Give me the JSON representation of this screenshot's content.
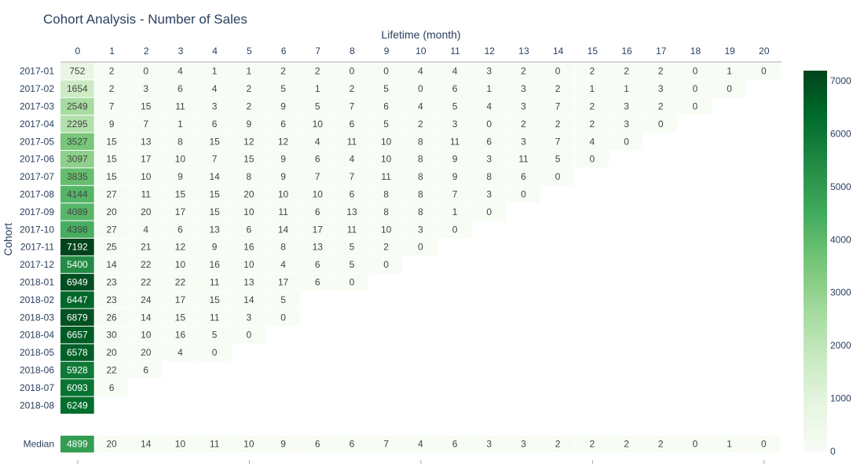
{
  "chart_data": {
    "type": "heatmap",
    "title": "Cohort Analysis - Number of Sales",
    "xlabel": "Lifetime (month)",
    "ylabel": "Cohort",
    "x": [
      "0",
      "1",
      "2",
      "3",
      "4",
      "5",
      "6",
      "7",
      "8",
      "9",
      "10",
      "11",
      "12",
      "13",
      "14",
      "15",
      "16",
      "17",
      "18",
      "19",
      "20"
    ],
    "rows": [
      {
        "cohort": "2017-01",
        "values": [
          752,
          2,
          0,
          4,
          1,
          1,
          2,
          2,
          0,
          0,
          4,
          4,
          3,
          2,
          0,
          2,
          2,
          2,
          0,
          1,
          0
        ]
      },
      {
        "cohort": "2017-02",
        "values": [
          1654,
          2,
          3,
          6,
          4,
          2,
          5,
          1,
          2,
          5,
          0,
          6,
          1,
          3,
          2,
          1,
          1,
          3,
          0,
          0
        ]
      },
      {
        "cohort": "2017-03",
        "values": [
          2549,
          7,
          15,
          11,
          3,
          2,
          9,
          5,
          7,
          6,
          4,
          5,
          4,
          3,
          7,
          2,
          3,
          2,
          0
        ]
      },
      {
        "cohort": "2017-04",
        "values": [
          2295,
          9,
          7,
          1,
          6,
          9,
          6,
          10,
          6,
          5,
          2,
          3,
          0,
          2,
          2,
          2,
          3,
          0
        ]
      },
      {
        "cohort": "2017-05",
        "values": [
          3527,
          15,
          13,
          8,
          15,
          12,
          12,
          4,
          11,
          10,
          8,
          11,
          6,
          3,
          7,
          4,
          0
        ]
      },
      {
        "cohort": "2017-06",
        "values": [
          3097,
          15,
          17,
          10,
          7,
          15,
          9,
          6,
          4,
          10,
          8,
          9,
          3,
          11,
          5,
          0
        ]
      },
      {
        "cohort": "2017-07",
        "values": [
          3835,
          15,
          10,
          9,
          14,
          8,
          9,
          7,
          7,
          11,
          8,
          9,
          8,
          6,
          0
        ]
      },
      {
        "cohort": "2017-08",
        "values": [
          4144,
          27,
          11,
          15,
          15,
          20,
          10,
          10,
          6,
          8,
          8,
          7,
          3,
          0
        ]
      },
      {
        "cohort": "2017-09",
        "values": [
          4089,
          20,
          20,
          17,
          15,
          10,
          11,
          6,
          13,
          8,
          8,
          1,
          0
        ]
      },
      {
        "cohort": "2017-10",
        "values": [
          4398,
          27,
          4,
          6,
          13,
          6,
          14,
          17,
          11,
          10,
          3,
          0
        ]
      },
      {
        "cohort": "2017-11",
        "values": [
          7192,
          25,
          21,
          12,
          9,
          16,
          8,
          13,
          5,
          2,
          0
        ]
      },
      {
        "cohort": "2017-12",
        "values": [
          5400,
          14,
          22,
          10,
          16,
          10,
          4,
          6,
          5,
          0
        ]
      },
      {
        "cohort": "2018-01",
        "values": [
          6949,
          23,
          22,
          22,
          11,
          13,
          17,
          6,
          0
        ]
      },
      {
        "cohort": "2018-02",
        "values": [
          6447,
          23,
          24,
          17,
          15,
          14,
          5
        ]
      },
      {
        "cohort": "2018-03",
        "values": [
          6879,
          26,
          14,
          15,
          11,
          3,
          0
        ]
      },
      {
        "cohort": "2018-04",
        "values": [
          6657,
          30,
          10,
          16,
          5,
          0
        ]
      },
      {
        "cohort": "2018-05",
        "values": [
          6578,
          20,
          20,
          4,
          0
        ]
      },
      {
        "cohort": "2018-06",
        "values": [
          5928,
          22,
          6
        ]
      },
      {
        "cohort": "2018-07",
        "values": [
          6093,
          6
        ]
      },
      {
        "cohort": "2018-08",
        "values": [
          6249
        ]
      }
    ],
    "summary_row": {
      "label": "Median",
      "values": [
        4899,
        20,
        14,
        10,
        11,
        10,
        9,
        6,
        6,
        7,
        4,
        6,
        3,
        3,
        2,
        2,
        2,
        2,
        0,
        1,
        0
      ]
    },
    "colorscale": {
      "name": "Greens",
      "min": 0,
      "max": 7192,
      "low_color": "#f7fcf5",
      "high_color": "#00441b"
    },
    "colorbar_ticks": [
      "0",
      "1000",
      "2000",
      "3000",
      "4000",
      "5000",
      "6000",
      "7000"
    ],
    "colorbar_tick_values": [
      0,
      1000,
      2000,
      3000,
      4000,
      5000,
      6000,
      7000
    ],
    "text_dark_color": "#444444",
    "text_light_color": "#ffffff",
    "axis_text_color": "#2a3f5f"
  }
}
